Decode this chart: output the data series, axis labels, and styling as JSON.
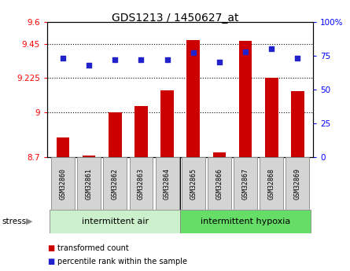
{
  "title": "GDS1213 / 1450627_at",
  "samples": [
    "GSM32860",
    "GSM32861",
    "GSM32862",
    "GSM32863",
    "GSM32864",
    "GSM32865",
    "GSM32866",
    "GSM32867",
    "GSM32868",
    "GSM32869"
  ],
  "transformed_count": [
    8.83,
    8.71,
    9.0,
    9.04,
    9.145,
    9.48,
    8.73,
    9.475,
    9.225,
    9.14
  ],
  "percentile_rank": [
    73,
    68,
    72,
    72,
    72,
    77,
    70,
    78,
    80,
    73
  ],
  "bar_color": "#cc0000",
  "dot_color": "#2222cc",
  "ylim_left": [
    8.7,
    9.6
  ],
  "ylim_right": [
    0,
    100
  ],
  "yticks_left": [
    8.7,
    9.0,
    9.225,
    9.45,
    9.6
  ],
  "ytick_labels_left": [
    "8.7",
    "9",
    "9.225",
    "9.45",
    "9.6"
  ],
  "yticks_right": [
    0,
    25,
    50,
    75,
    100
  ],
  "ytick_labels_right": [
    "0",
    "25",
    "50",
    "75",
    "100%"
  ],
  "hlines": [
    9.0,
    9.225,
    9.45
  ],
  "group1_label": "intermittent air",
  "group2_label": "intermittent hypoxia",
  "group1_color": "#ccf0cc",
  "group2_color": "#66dd66",
  "stress_label": "stress",
  "legend_bar_label": "transformed count",
  "legend_dot_label": "percentile rank within the sample",
  "n_group1": 5,
  "n_group2": 5,
  "bar_width": 0.5
}
